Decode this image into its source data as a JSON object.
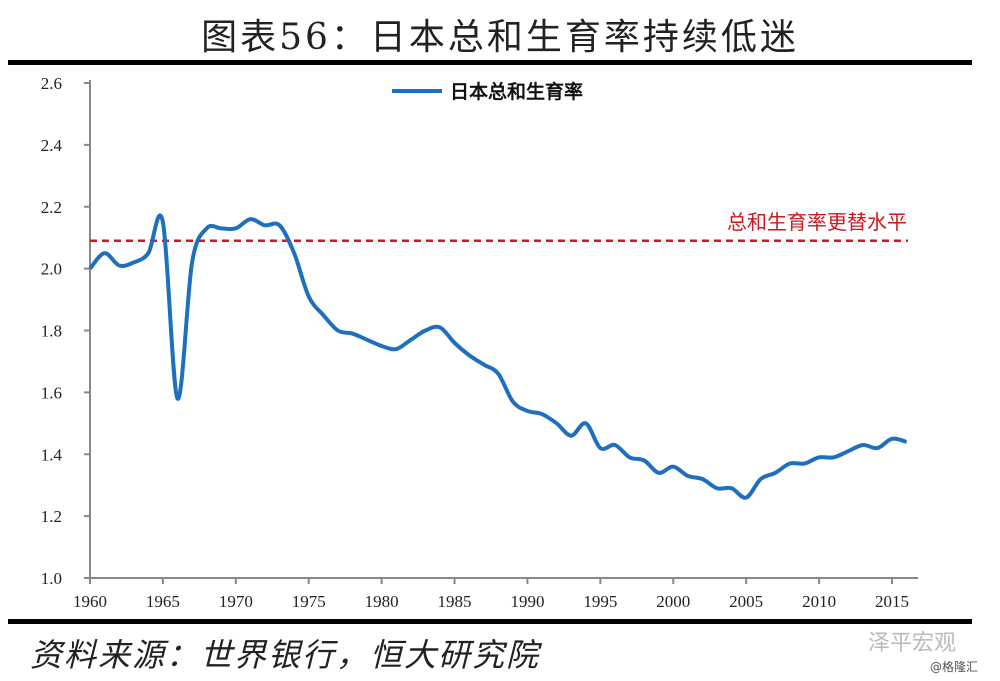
{
  "title": "图表56：日本总和生育率持续低迷",
  "source": "资料来源：世界银行，恒大研究院",
  "watermark": "泽平宏观",
  "watermark_sub": "@格隆汇",
  "chart_data": {
    "type": "line",
    "title": "图表56：日本总和生育率持续低迷",
    "xlabel": "",
    "ylabel": "",
    "ylim": [
      1.0,
      2.6
    ],
    "yticks": [
      "1.0",
      "1.2",
      "1.4",
      "1.6",
      "1.8",
      "2.0",
      "2.2",
      "2.4",
      "2.6"
    ],
    "xticks": [
      "1960",
      "1965",
      "1970",
      "1975",
      "1980",
      "1985",
      "1990",
      "1995",
      "2000",
      "2005",
      "2010",
      "2015"
    ],
    "legend": "top-center",
    "series": [
      {
        "name": "日本总和生育率",
        "color": "#1f6fbf",
        "x": [
          1960,
          1961,
          1962,
          1963,
          1964,
          1965,
          1966,
          1967,
          1968,
          1969,
          1970,
          1971,
          1972,
          1973,
          1974,
          1975,
          1976,
          1977,
          1978,
          1979,
          1980,
          1981,
          1982,
          1983,
          1984,
          1985,
          1986,
          1987,
          1988,
          1989,
          1990,
          1991,
          1992,
          1993,
          1994,
          1995,
          1996,
          1997,
          1998,
          1999,
          2000,
          2001,
          2002,
          2003,
          2004,
          2005,
          2006,
          2007,
          2008,
          2009,
          2010,
          2011,
          2012,
          2013,
          2014,
          2015,
          2016
        ],
        "values": [
          2.0,
          2.05,
          2.01,
          2.02,
          2.05,
          2.15,
          1.58,
          2.02,
          2.13,
          2.13,
          2.13,
          2.16,
          2.14,
          2.14,
          2.05,
          1.91,
          1.85,
          1.8,
          1.79,
          1.77,
          1.75,
          1.74,
          1.77,
          1.8,
          1.81,
          1.76,
          1.72,
          1.69,
          1.66,
          1.57,
          1.54,
          1.53,
          1.5,
          1.46,
          1.5,
          1.42,
          1.43,
          1.39,
          1.38,
          1.34,
          1.36,
          1.33,
          1.32,
          1.29,
          1.29,
          1.26,
          1.32,
          1.34,
          1.37,
          1.37,
          1.39,
          1.39,
          1.41,
          1.43,
          1.42,
          1.45,
          1.44
        ]
      }
    ],
    "reference_line": {
      "label": "总和生育率更替水平",
      "value": 2.09,
      "color": "#d0161e"
    }
  }
}
